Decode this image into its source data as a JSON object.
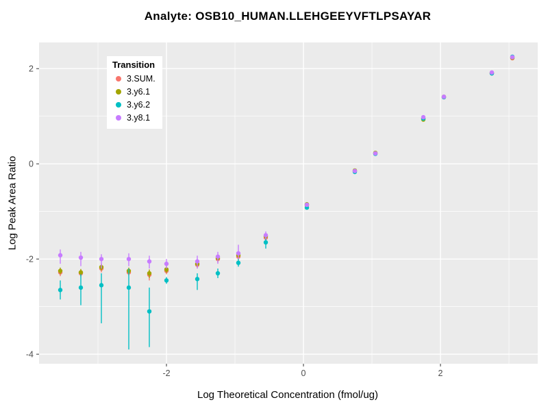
{
  "chart_data": {
    "type": "scatter",
    "title": "Analyte: OSB10_HUMAN.LLEHGEEYVFTLPSAYAR",
    "xlabel": "Log Theoretical Concentration (fmol/ug)",
    "ylabel": "Log Peak Area Ratio",
    "xlim": [
      -3.86,
      3.42
    ],
    "ylim": [
      -4.2,
      2.55
    ],
    "x_ticks": [
      -2,
      0,
      2
    ],
    "y_ticks": [
      -4,
      -2,
      0,
      2
    ],
    "x_minor": [
      -3,
      -1,
      1,
      3
    ],
    "y_minor": [
      -3,
      -1,
      1
    ],
    "layout": {
      "panel_bg": "#EBEBEB",
      "grid_color": "#FFFFFF",
      "tick_color": "#333333",
      "legend_position": "top-left",
      "grid": true
    },
    "legend_title": "Transition",
    "series": [
      {
        "name": "3.SUM.",
        "color": "#F8766D",
        "points": [
          [
            -3.55,
            -2.28,
            -2.36,
            -2.2
          ],
          [
            -3.25,
            -2.3,
            -2.38,
            -2.22
          ],
          [
            -2.95,
            -2.2,
            -2.28,
            -2.12
          ],
          [
            -2.55,
            -2.28,
            -2.35,
            -2.2
          ],
          [
            -2.25,
            -2.33,
            -2.45,
            -2.24
          ],
          [
            -2.0,
            -2.25,
            -2.32,
            -2.18
          ],
          [
            -1.55,
            -2.12,
            -2.2,
            -2.05
          ],
          [
            -1.25,
            -2.0,
            -2.08,
            -1.92
          ],
          [
            -0.95,
            -1.95,
            -2.02,
            -1.88
          ],
          [
            -0.55,
            -1.55,
            -1.62,
            -1.48
          ],
          [
            0.05,
            -0.87,
            -0.9,
            -0.84
          ],
          [
            0.75,
            -0.15,
            -0.17,
            -0.13
          ],
          [
            1.05,
            0.22,
            0.2,
            0.24
          ],
          [
            1.75,
            0.95,
            0.93,
            0.97
          ],
          [
            2.05,
            1.4,
            1.39,
            1.41
          ],
          [
            2.75,
            1.9,
            1.89,
            1.91
          ],
          [
            3.05,
            2.22,
            2.21,
            2.23
          ]
        ]
      },
      {
        "name": "3.y6.1",
        "color": "#A3A500",
        "points": [
          [
            -3.55,
            -2.25,
            -2.32,
            -2.18
          ],
          [
            -3.25,
            -2.28,
            -2.35,
            -2.21
          ],
          [
            -2.95,
            -2.17,
            -2.24,
            -2.1
          ],
          [
            -2.55,
            -2.25,
            -2.32,
            -2.18
          ],
          [
            -2.25,
            -2.3,
            -2.4,
            -2.22
          ],
          [
            -2.0,
            -2.22,
            -2.29,
            -2.15
          ],
          [
            -1.55,
            -2.1,
            -2.17,
            -2.03
          ],
          [
            -1.25,
            -1.98,
            -2.05,
            -1.91
          ],
          [
            -0.95,
            -1.92,
            -1.99,
            -1.85
          ],
          [
            -0.55,
            -1.52,
            -1.58,
            -1.46
          ],
          [
            0.05,
            -0.85,
            -0.88,
            -0.82
          ],
          [
            0.75,
            -0.14,
            -0.16,
            -0.12
          ],
          [
            1.05,
            0.23,
            0.21,
            0.25
          ],
          [
            1.75,
            0.93,
            0.91,
            0.95
          ],
          [
            2.05,
            1.41,
            1.4,
            1.42
          ],
          [
            2.75,
            1.91,
            1.9,
            1.92
          ],
          [
            3.05,
            2.23,
            2.22,
            2.24
          ]
        ]
      },
      {
        "name": "3.y6.2",
        "color": "#00BFC4",
        "points": [
          [
            -3.55,
            -2.65,
            -2.85,
            -2.45
          ],
          [
            -3.25,
            -2.6,
            -2.97,
            -2.32
          ],
          [
            -2.95,
            -2.55,
            -3.35,
            -2.3
          ],
          [
            -2.55,
            -2.6,
            -3.9,
            -2.2
          ],
          [
            -2.25,
            -3.1,
            -3.85,
            -2.6
          ],
          [
            -2.0,
            -2.45,
            -2.52,
            -2.38
          ],
          [
            -1.55,
            -2.42,
            -2.65,
            -2.3
          ],
          [
            -1.25,
            -2.3,
            -2.4,
            -2.2
          ],
          [
            -0.95,
            -2.08,
            -2.16,
            -2.0
          ],
          [
            -0.55,
            -1.65,
            -1.78,
            -1.55
          ],
          [
            0.05,
            -0.92,
            -0.95,
            -0.89
          ],
          [
            0.75,
            -0.17,
            -0.19,
            -0.15
          ],
          [
            1.05,
            0.21,
            0.19,
            0.23
          ],
          [
            1.75,
            0.95,
            0.94,
            0.96
          ],
          [
            2.05,
            1.4,
            1.39,
            1.41
          ],
          [
            2.75,
            1.9,
            1.89,
            1.91
          ],
          [
            3.05,
            2.25,
            2.23,
            2.27
          ]
        ]
      },
      {
        "name": "3.y8.1",
        "color": "#C77CFF",
        "points": [
          [
            -3.55,
            -1.92,
            -2.1,
            -1.8
          ],
          [
            -3.25,
            -1.97,
            -2.15,
            -1.85
          ],
          [
            -2.95,
            -2.0,
            -2.2,
            -1.9
          ],
          [
            -2.55,
            -2.0,
            -2.15,
            -1.88
          ],
          [
            -2.25,
            -2.05,
            -2.2,
            -1.93
          ],
          [
            -2.0,
            -2.1,
            -2.2,
            -2.0
          ],
          [
            -1.55,
            -2.05,
            -2.2,
            -1.93
          ],
          [
            -1.25,
            -1.95,
            -2.1,
            -1.85
          ],
          [
            -0.95,
            -1.88,
            -2.0,
            -1.7
          ],
          [
            -0.55,
            -1.5,
            -1.58,
            -1.42
          ],
          [
            0.05,
            -0.86,
            -0.89,
            -0.83
          ],
          [
            0.75,
            -0.15,
            -0.17,
            -0.13
          ],
          [
            1.05,
            0.22,
            0.2,
            0.24
          ],
          [
            1.75,
            0.98,
            0.96,
            1.0
          ],
          [
            2.05,
            1.41,
            1.4,
            1.42
          ],
          [
            2.75,
            1.92,
            1.91,
            1.93
          ],
          [
            3.05,
            2.24,
            2.23,
            2.25
          ]
        ]
      }
    ]
  }
}
